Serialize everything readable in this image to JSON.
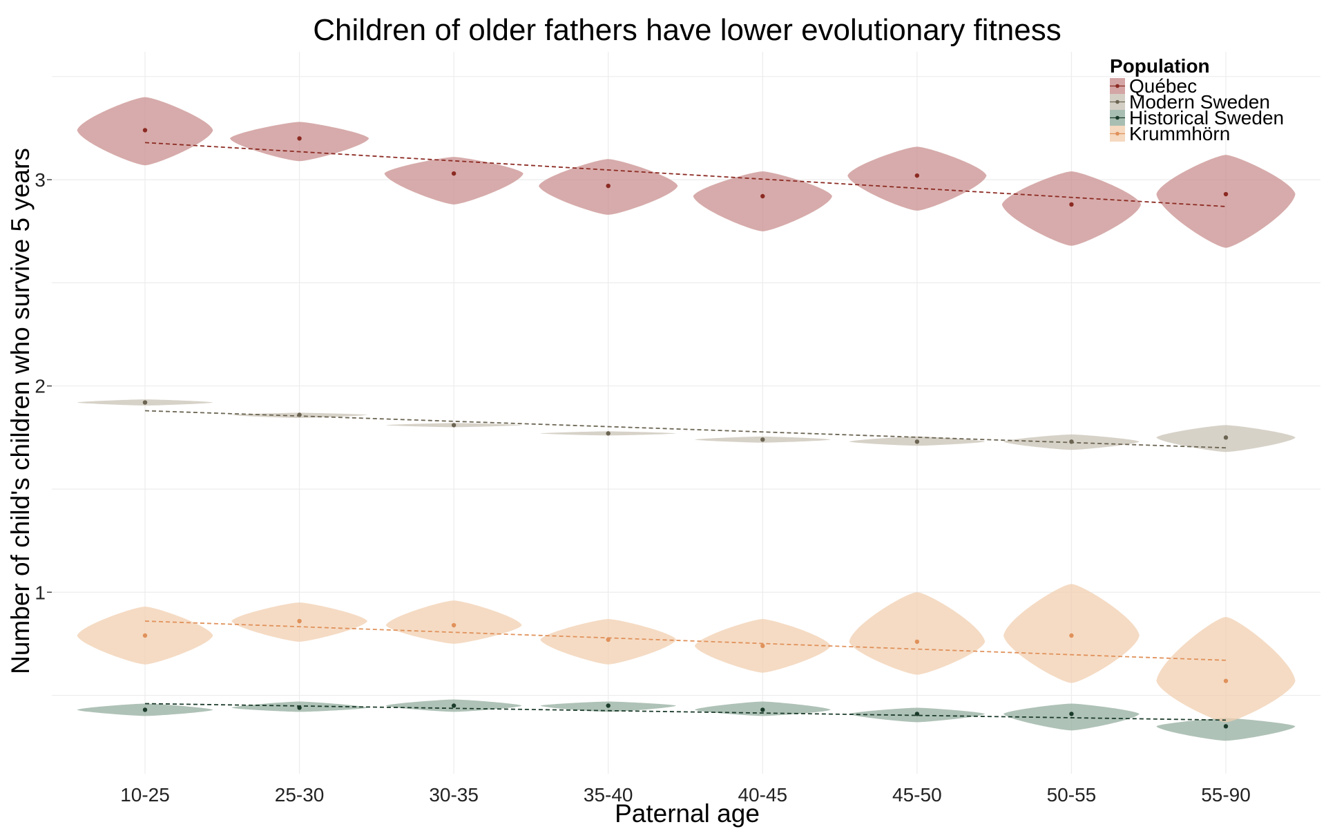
{
  "chart_data": {
    "type": "violin",
    "title": "Children of older fathers have lower evolutionary fitness",
    "xlabel": "Paternal age",
    "ylabel": "Number of child's children who survive 5 years",
    "categories": [
      "10-25",
      "25-30",
      "30-35",
      "35-40",
      "40-45",
      "45-50",
      "50-55",
      "55-90"
    ],
    "ylim": [
      0.12,
      3.62
    ],
    "y_ticks": [
      1,
      2,
      3
    ],
    "grid": true,
    "legend": {
      "title": "Population",
      "position": "top-right"
    },
    "series": [
      {
        "name": "Québec",
        "color": "#c98f8f",
        "point_color": "#8b2a22",
        "means": [
          3.24,
          3.2,
          3.03,
          2.97,
          2.92,
          3.02,
          2.88,
          2.93
        ],
        "trend": [
          3.18,
          2.87
        ],
        "violin_top": [
          3.4,
          3.28,
          3.11,
          3.1,
          3.04,
          3.16,
          3.04,
          3.12
        ],
        "violin_bottom": [
          3.07,
          3.09,
          2.88,
          2.83,
          2.75,
          2.85,
          2.68,
          2.67
        ],
        "violin_halfwidth": [
          0.44,
          0.45,
          0.45,
          0.45,
          0.45,
          0.45,
          0.45,
          0.45
        ]
      },
      {
        "name": "Modern Sweden",
        "color": "#c9c3b6",
        "point_color": "#6b6452",
        "means": [
          1.92,
          1.86,
          1.81,
          1.77,
          1.74,
          1.73,
          1.73,
          1.75
        ],
        "trend": [
          1.88,
          1.7
        ],
        "violin_top": [
          1.935,
          1.87,
          1.82,
          1.78,
          1.755,
          1.755,
          1.765,
          1.81
        ],
        "violin_bottom": [
          1.905,
          1.845,
          1.8,
          1.76,
          1.725,
          1.71,
          1.69,
          1.68
        ],
        "violin_halfwidth": [
          0.44,
          0.44,
          0.44,
          0.44,
          0.44,
          0.44,
          0.44,
          0.45
        ]
      },
      {
        "name": "Historical Sweden",
        "color": "#94ae9f",
        "point_color": "#1b3b2a",
        "means": [
          0.43,
          0.44,
          0.45,
          0.45,
          0.43,
          0.41,
          0.41,
          0.35
        ],
        "trend": [
          0.46,
          0.38
        ],
        "violin_top": [
          0.46,
          0.47,
          0.48,
          0.47,
          0.47,
          0.44,
          0.46,
          0.39
        ],
        "violin_bottom": [
          0.4,
          0.42,
          0.42,
          0.42,
          0.4,
          0.37,
          0.33,
          0.28
        ],
        "violin_halfwidth": [
          0.44,
          0.44,
          0.44,
          0.44,
          0.44,
          0.44,
          0.44,
          0.45
        ]
      },
      {
        "name": "Krummhörn",
        "color": "#f2cfb0",
        "point_color": "#e0915a",
        "means": [
          0.79,
          0.86,
          0.84,
          0.77,
          0.74,
          0.76,
          0.79,
          0.57
        ],
        "trend": [
          0.86,
          0.67
        ],
        "violin_top": [
          0.93,
          0.95,
          0.96,
          0.87,
          0.87,
          1.0,
          1.04,
          0.88
        ],
        "violin_bottom": [
          0.65,
          0.76,
          0.75,
          0.65,
          0.61,
          0.6,
          0.56,
          0.37
        ],
        "violin_halfwidth": [
          0.44,
          0.44,
          0.44,
          0.44,
          0.44,
          0.44,
          0.44,
          0.45
        ]
      }
    ]
  }
}
